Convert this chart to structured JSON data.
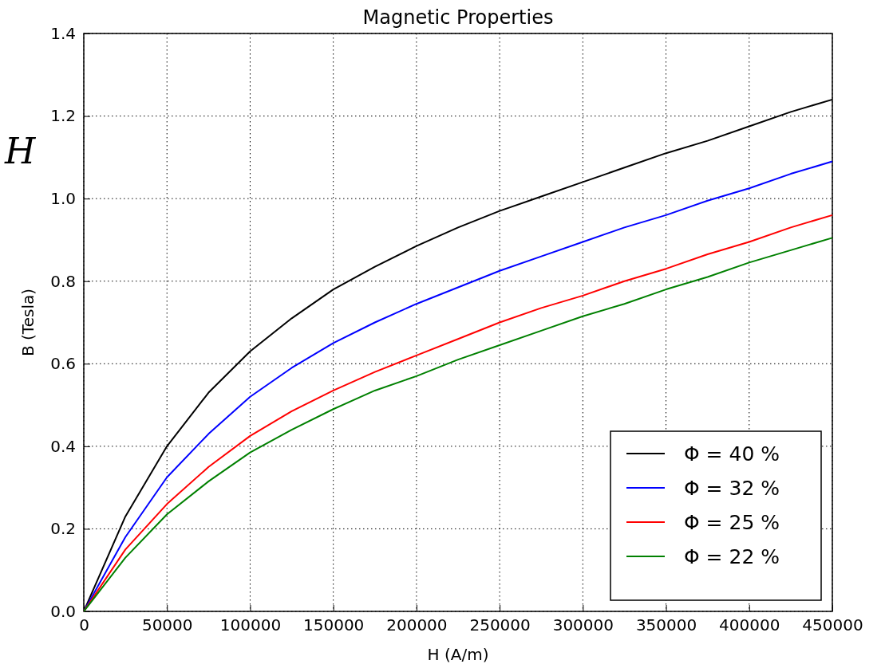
{
  "chart_data": {
    "type": "line",
    "title": "Magnetic Properties",
    "xlabel": "H (A/m)",
    "ylabel": "B (Tesla)",
    "annotations": [
      "H"
    ],
    "x": [
      0,
      25000,
      50000,
      75000,
      100000,
      125000,
      150000,
      175000,
      200000,
      225000,
      250000,
      275000,
      300000,
      325000,
      350000,
      375000,
      400000,
      425000,
      450000
    ],
    "series": [
      {
        "name": "Φ = 40 %",
        "color": "#000000",
        "values": [
          0,
          0.23,
          0.4,
          0.53,
          0.63,
          0.71,
          0.78,
          0.835,
          0.885,
          0.93,
          0.97,
          1.005,
          1.04,
          1.075,
          1.11,
          1.14,
          1.175,
          1.21,
          1.24
        ]
      },
      {
        "name": "Φ = 32 %",
        "color": "#0000ff",
        "values": [
          0,
          0.18,
          0.325,
          0.43,
          0.52,
          0.59,
          0.65,
          0.7,
          0.745,
          0.785,
          0.825,
          0.86,
          0.895,
          0.93,
          0.96,
          0.995,
          1.025,
          1.06,
          1.09
        ]
      },
      {
        "name": "Φ = 25 %",
        "color": "#ff0000",
        "values": [
          0,
          0.15,
          0.26,
          0.35,
          0.425,
          0.485,
          0.535,
          0.58,
          0.62,
          0.66,
          0.7,
          0.735,
          0.765,
          0.8,
          0.83,
          0.865,
          0.895,
          0.93,
          0.96
        ]
      },
      {
        "name": "Φ = 22 %",
        "color": "#008000",
        "values": [
          0,
          0.13,
          0.235,
          0.315,
          0.385,
          0.44,
          0.49,
          0.535,
          0.57,
          0.61,
          0.645,
          0.68,
          0.715,
          0.745,
          0.78,
          0.81,
          0.845,
          0.875,
          0.905
        ]
      }
    ],
    "xlim": [
      0,
      450000
    ],
    "xticks": [
      0,
      50000,
      100000,
      150000,
      200000,
      250000,
      300000,
      350000,
      400000,
      450000
    ],
    "ylim": [
      0,
      1.4
    ],
    "yticks": [
      {
        "value": 0,
        "label": "0.0"
      },
      {
        "value": 0.2,
        "label": "0.2"
      },
      {
        "value": 0.4,
        "label": "0.4"
      },
      {
        "value": 0.6,
        "label": "0.6"
      },
      {
        "value": 0.8,
        "label": "0.8"
      },
      {
        "value": 1.0,
        "label": "1.0"
      },
      {
        "value": 1.2,
        "label": "1.2"
      },
      {
        "value": 1.4,
        "label": "1.4"
      }
    ],
    "grid": true,
    "legend": "bottom right",
    "line_style": "solid",
    "marker": "none"
  }
}
